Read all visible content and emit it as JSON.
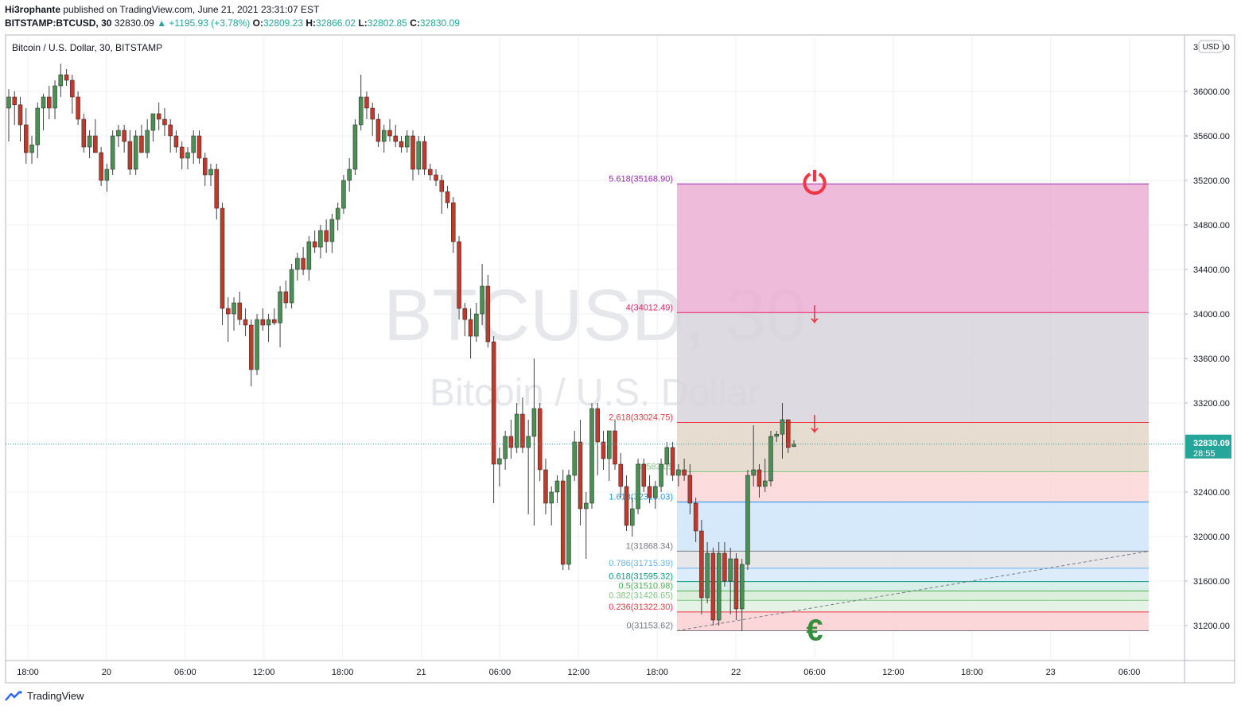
{
  "header": {
    "author": "Hi3rophante",
    "published": "published on TradingView.com, June 21, 2021 23:31:07 EST",
    "symbol": "BITSTAMP:BTCUSD, 30",
    "last": "32830.09",
    "change": "▲ +1195.93 (+3.78%)",
    "o_label": "O:",
    "o_val": "32809.23",
    "h_label": "H:",
    "h_val": "32866.02",
    "l_label": "L:",
    "l_val": "32802.85",
    "c_label": "C:",
    "c_val": "32830.09"
  },
  "footer": {
    "brand": "TradingView"
  },
  "chart_data": {
    "type": "candlestick",
    "title": "Bitcoin / U.S. Dollar, 30, BITSTAMP",
    "watermark": [
      "BTCUSD, 30",
      "Bitcoin / U.S. Dollar"
    ],
    "currency_label": "USD",
    "price_badge": {
      "price": "32830.09",
      "countdown": "28:55"
    },
    "ylim": [
      30900,
      36500
    ],
    "y_ticks": [
      31200,
      31600,
      32000,
      32400,
      32800,
      33200,
      33600,
      34000,
      34400,
      34800,
      35200,
      35600,
      36000
    ],
    "x_ticks": [
      "18:00",
      "20",
      "06:00",
      "12:00",
      "18:00",
      "21",
      "06:00",
      "12:00",
      "18:00",
      "22",
      "06:00",
      "12:00",
      "18:00",
      "23",
      "06:00"
    ],
    "colors": {
      "up": "#26a69a",
      "down": "#ef5350",
      "up_body": "#4a8f53",
      "down_body": "#c0392b"
    },
    "candles": [
      {
        "o": 35850,
        "h": 36020,
        "l": 35550,
        "c": 35950
      },
      {
        "o": 35950,
        "h": 36000,
        "l": 35700,
        "c": 35880
      },
      {
        "o": 35880,
        "h": 35950,
        "l": 35550,
        "c": 35700
      },
      {
        "o": 35700,
        "h": 35850,
        "l": 35350,
        "c": 35450
      },
      {
        "o": 35450,
        "h": 35600,
        "l": 35350,
        "c": 35520
      },
      {
        "o": 35520,
        "h": 35900,
        "l": 35400,
        "c": 35850
      },
      {
        "o": 35850,
        "h": 35980,
        "l": 35650,
        "c": 35950
      },
      {
        "o": 35950,
        "h": 36050,
        "l": 35750,
        "c": 35850
      },
      {
        "o": 35850,
        "h": 36100,
        "l": 35750,
        "c": 36050
      },
      {
        "o": 36050,
        "h": 36250,
        "l": 35950,
        "c": 36150
      },
      {
        "o": 36150,
        "h": 36200,
        "l": 36050,
        "c": 36100
      },
      {
        "o": 36100,
        "h": 36150,
        "l": 35800,
        "c": 35950
      },
      {
        "o": 35950,
        "h": 36000,
        "l": 35700,
        "c": 35750
      },
      {
        "o": 35750,
        "h": 35800,
        "l": 35450,
        "c": 35500
      },
      {
        "o": 35500,
        "h": 35650,
        "l": 35400,
        "c": 35600
      },
      {
        "o": 35600,
        "h": 35750,
        "l": 35450,
        "c": 35450
      },
      {
        "o": 35450,
        "h": 35500,
        "l": 35150,
        "c": 35200
      },
      {
        "o": 35200,
        "h": 35350,
        "l": 35100,
        "c": 35300
      },
      {
        "o": 35300,
        "h": 35650,
        "l": 35250,
        "c": 35600
      },
      {
        "o": 35600,
        "h": 35700,
        "l": 35500,
        "c": 35650
      },
      {
        "o": 35650,
        "h": 35700,
        "l": 35450,
        "c": 35550
      },
      {
        "o": 35550,
        "h": 35650,
        "l": 35250,
        "c": 35300
      },
      {
        "o": 35300,
        "h": 35650,
        "l": 35250,
        "c": 35600
      },
      {
        "o": 35600,
        "h": 35700,
        "l": 35450,
        "c": 35450
      },
      {
        "o": 35450,
        "h": 35750,
        "l": 35400,
        "c": 35650
      },
      {
        "o": 35650,
        "h": 35800,
        "l": 35550,
        "c": 35800
      },
      {
        "o": 35800,
        "h": 35900,
        "l": 35650,
        "c": 35750
      },
      {
        "o": 35750,
        "h": 35850,
        "l": 35600,
        "c": 35700
      },
      {
        "o": 35700,
        "h": 35750,
        "l": 35450,
        "c": 35600
      },
      {
        "o": 35600,
        "h": 35650,
        "l": 35450,
        "c": 35500
      },
      {
        "o": 35500,
        "h": 35550,
        "l": 35300,
        "c": 35400
      },
      {
        "o": 35400,
        "h": 35500,
        "l": 35300,
        "c": 35450
      },
      {
        "o": 35450,
        "h": 35650,
        "l": 35350,
        "c": 35600
      },
      {
        "o": 35600,
        "h": 35650,
        "l": 35350,
        "c": 35400
      },
      {
        "o": 35400,
        "h": 35450,
        "l": 35150,
        "c": 35250
      },
      {
        "o": 35250,
        "h": 35350,
        "l": 35150,
        "c": 35300
      },
      {
        "o": 35300,
        "h": 35350,
        "l": 34850,
        "c": 34950
      },
      {
        "o": 34950,
        "h": 35000,
        "l": 33900,
        "c": 34050
      },
      {
        "o": 34050,
        "h": 34150,
        "l": 33750,
        "c": 34000
      },
      {
        "o": 34000,
        "h": 34150,
        "l": 33850,
        "c": 34100
      },
      {
        "o": 34100,
        "h": 34200,
        "l": 33900,
        "c": 33950
      },
      {
        "o": 33950,
        "h": 34050,
        "l": 33800,
        "c": 33900
      },
      {
        "o": 33900,
        "h": 33950,
        "l": 33350,
        "c": 33500
      },
      {
        "o": 33500,
        "h": 34000,
        "l": 33450,
        "c": 33950
      },
      {
        "o": 33950,
        "h": 34050,
        "l": 33850,
        "c": 33900
      },
      {
        "o": 33900,
        "h": 34000,
        "l": 33750,
        "c": 33950
      },
      {
        "o": 33950,
        "h": 34050,
        "l": 33900,
        "c": 33920
      },
      {
        "o": 33920,
        "h": 34250,
        "l": 33700,
        "c": 34200
      },
      {
        "o": 34200,
        "h": 34300,
        "l": 34050,
        "c": 34100
      },
      {
        "o": 34100,
        "h": 34450,
        "l": 34050,
        "c": 34400
      },
      {
        "o": 34400,
        "h": 34550,
        "l": 34300,
        "c": 34500
      },
      {
        "o": 34500,
        "h": 34600,
        "l": 34350,
        "c": 34400
      },
      {
        "o": 34400,
        "h": 34700,
        "l": 34300,
        "c": 34650
      },
      {
        "o": 34650,
        "h": 34750,
        "l": 34550,
        "c": 34600
      },
      {
        "o": 34600,
        "h": 34800,
        "l": 34500,
        "c": 34750
      },
      {
        "o": 34750,
        "h": 34850,
        "l": 34550,
        "c": 34650
      },
      {
        "o": 34650,
        "h": 34900,
        "l": 34550,
        "c": 34850
      },
      {
        "o": 34850,
        "h": 35000,
        "l": 34750,
        "c": 34950
      },
      {
        "o": 34950,
        "h": 35250,
        "l": 34900,
        "c": 35200
      },
      {
        "o": 35200,
        "h": 35400,
        "l": 35100,
        "c": 35300
      },
      {
        "o": 35300,
        "h": 35750,
        "l": 35250,
        "c": 35700
      },
      {
        "o": 35700,
        "h": 36150,
        "l": 35650,
        "c": 35950
      },
      {
        "o": 35950,
        "h": 36000,
        "l": 35750,
        "c": 35850
      },
      {
        "o": 35850,
        "h": 35900,
        "l": 35600,
        "c": 35750
      },
      {
        "o": 35750,
        "h": 35800,
        "l": 35500,
        "c": 35550
      },
      {
        "o": 35550,
        "h": 35700,
        "l": 35450,
        "c": 35650
      },
      {
        "o": 35650,
        "h": 35750,
        "l": 35550,
        "c": 35600
      },
      {
        "o": 35600,
        "h": 35700,
        "l": 35500,
        "c": 35550
      },
      {
        "o": 35550,
        "h": 35600,
        "l": 35450,
        "c": 35500
      },
      {
        "o": 35500,
        "h": 35650,
        "l": 35450,
        "c": 35600
      },
      {
        "o": 35600,
        "h": 35650,
        "l": 35200,
        "c": 35300
      },
      {
        "o": 35300,
        "h": 35600,
        "l": 35250,
        "c": 35550
      },
      {
        "o": 35550,
        "h": 35600,
        "l": 35250,
        "c": 35300
      },
      {
        "o": 35300,
        "h": 35350,
        "l": 35200,
        "c": 35250
      },
      {
        "o": 35250,
        "h": 35300,
        "l": 35150,
        "c": 35200
      },
      {
        "o": 35200,
        "h": 35250,
        "l": 34900,
        "c": 35100
      },
      {
        "o": 35100,
        "h": 35150,
        "l": 34950,
        "c": 35000
      },
      {
        "o": 35000,
        "h": 35050,
        "l": 34550,
        "c": 34650
      },
      {
        "o": 34650,
        "h": 34700,
        "l": 33950,
        "c": 34050
      },
      {
        "o": 34050,
        "h": 34100,
        "l": 33800,
        "c": 33950
      },
      {
        "o": 33950,
        "h": 34050,
        "l": 33600,
        "c": 33800
      },
      {
        "o": 33800,
        "h": 34100,
        "l": 33750,
        "c": 34000
      },
      {
        "o": 34000,
        "h": 34450,
        "l": 33900,
        "c": 34250
      },
      {
        "o": 34250,
        "h": 34350,
        "l": 33700,
        "c": 33750
      },
      {
        "o": 33750,
        "h": 33800,
        "l": 32300,
        "c": 32650
      },
      {
        "o": 32650,
        "h": 32800,
        "l": 32450,
        "c": 32700
      },
      {
        "o": 32700,
        "h": 32950,
        "l": 32600,
        "c": 32900
      },
      {
        "o": 32900,
        "h": 33050,
        "l": 32700,
        "c": 32800
      },
      {
        "o": 32800,
        "h": 33200,
        "l": 32750,
        "c": 33100
      },
      {
        "o": 33100,
        "h": 33250,
        "l": 32750,
        "c": 32800
      },
      {
        "o": 32800,
        "h": 33050,
        "l": 32200,
        "c": 32900
      },
      {
        "o": 32900,
        "h": 33600,
        "l": 32100,
        "c": 33150
      },
      {
        "o": 33150,
        "h": 33200,
        "l": 32500,
        "c": 32600
      },
      {
        "o": 32600,
        "h": 32700,
        "l": 32200,
        "c": 32300
      },
      {
        "o": 32300,
        "h": 32450,
        "l": 32100,
        "c": 32400
      },
      {
        "o": 32400,
        "h": 32550,
        "l": 32300,
        "c": 32500
      },
      {
        "o": 32500,
        "h": 32600,
        "l": 31700,
        "c": 31750
      },
      {
        "o": 31750,
        "h": 32600,
        "l": 31700,
        "c": 32550
      },
      {
        "o": 32550,
        "h": 32950,
        "l": 32500,
        "c": 32850
      },
      {
        "o": 32850,
        "h": 33050,
        "l": 32100,
        "c": 32250
      },
      {
        "o": 32250,
        "h": 32400,
        "l": 31800,
        "c": 32300
      },
      {
        "o": 32300,
        "h": 33200,
        "l": 32250,
        "c": 33150
      },
      {
        "o": 33150,
        "h": 33200,
        "l": 32550,
        "c": 32850
      },
      {
        "o": 32850,
        "h": 32950,
        "l": 32600,
        "c": 32700
      },
      {
        "o": 32700,
        "h": 32950,
        "l": 32500,
        "c": 32950
      },
      {
        "o": 32950,
        "h": 33050,
        "l": 32600,
        "c": 32650
      },
      {
        "o": 32650,
        "h": 32750,
        "l": 32350,
        "c": 32450
      },
      {
        "o": 32450,
        "h": 32550,
        "l": 32050,
        "c": 32100
      },
      {
        "o": 32100,
        "h": 32350,
        "l": 32000,
        "c": 32250
      },
      {
        "o": 32250,
        "h": 32700,
        "l": 32200,
        "c": 32650
      },
      {
        "o": 32650,
        "h": 32700,
        "l": 32400,
        "c": 32450
      },
      {
        "o": 32450,
        "h": 32550,
        "l": 32300,
        "c": 32350
      },
      {
        "o": 32350,
        "h": 32500,
        "l": 32250,
        "c": 32450
      },
      {
        "o": 32450,
        "h": 32700,
        "l": 32400,
        "c": 32650
      },
      {
        "o": 32650,
        "h": 32850,
        "l": 32550,
        "c": 32800
      },
      {
        "o": 32800,
        "h": 32850,
        "l": 32500,
        "c": 32550
      },
      {
        "o": 32550,
        "h": 32650,
        "l": 32450,
        "c": 32600
      },
      {
        "o": 32600,
        "h": 32700,
        "l": 32500,
        "c": 32550
      },
      {
        "o": 32550,
        "h": 32650,
        "l": 32200,
        "c": 32300
      },
      {
        "o": 32300,
        "h": 32350,
        "l": 31950,
        "c": 32050
      },
      {
        "o": 32050,
        "h": 32150,
        "l": 31300,
        "c": 31450
      },
      {
        "o": 31450,
        "h": 31950,
        "l": 31400,
        "c": 31850
      },
      {
        "o": 31850,
        "h": 31900,
        "l": 31200,
        "c": 31250
      },
      {
        "o": 31250,
        "h": 31950,
        "l": 31200,
        "c": 31850
      },
      {
        "o": 31850,
        "h": 31950,
        "l": 31550,
        "c": 31600
      },
      {
        "o": 31600,
        "h": 31900,
        "l": 31300,
        "c": 31800
      },
      {
        "o": 31800,
        "h": 31850,
        "l": 31250,
        "c": 31350
      },
      {
        "o": 31350,
        "h": 31800,
        "l": 31150,
        "c": 31750
      },
      {
        "o": 31750,
        "h": 32600,
        "l": 31700,
        "c": 32550
      },
      {
        "o": 32550,
        "h": 33000,
        "l": 32450,
        "c": 32600
      },
      {
        "o": 32600,
        "h": 32650,
        "l": 32350,
        "c": 32450
      },
      {
        "o": 32450,
        "h": 32700,
        "l": 32400,
        "c": 32500
      },
      {
        "o": 32500,
        "h": 32950,
        "l": 32450,
        "c": 32900
      },
      {
        "o": 32900,
        "h": 32950,
        "l": 32850,
        "c": 32920
      },
      {
        "o": 32920,
        "h": 33200,
        "l": 32700,
        "c": 33050
      },
      {
        "o": 33050,
        "h": 33050,
        "l": 32750,
        "c": 32800
      },
      {
        "o": 32809.23,
        "h": 32866.02,
        "l": 32802.85,
        "c": 32830.09
      }
    ],
    "fib_levels": [
      {
        "label": "0(31153.62)",
        "price": 31153.62,
        "color": "#787b86"
      },
      {
        "label": "0.236(31322.30)",
        "price": 31322.3,
        "color": "#f23645"
      },
      {
        "label": "0.382(31426.65)",
        "price": 31426.65,
        "color": "#81c784"
      },
      {
        "label": "0.5(31510.98)",
        "price": 31510.98,
        "color": "#4caf50"
      },
      {
        "label": "0.618(31595.32)",
        "price": 31595.32,
        "color": "#089981"
      },
      {
        "label": "0.786(31715.39)",
        "price": 31715.39,
        "color": "#64b5f6"
      },
      {
        "label": "1(31868.34)",
        "price": 31868.34,
        "color": "#787b86"
      },
      {
        "label": "1.618(32310.03)",
        "price": 32310.03,
        "color": "#2196f3"
      },
      {
        "label": "32583.05",
        "price": 32583.05,
        "color": "#81c784"
      },
      {
        "label": "2.618(33024.75)",
        "price": 33024.75,
        "color": "#f23645"
      },
      {
        "label": "4(34012.49)",
        "price": 34012.49,
        "color": "#e91e63"
      },
      {
        "label": "5.618(35168.90)",
        "price": 35168.9,
        "color": "#9c27b0"
      }
    ],
    "fib_zone_colors": [
      "#fbd0d2",
      "#dff1e0",
      "#d6ecd7",
      "#d0ebe5",
      "#d7e9f9",
      "#e3e3e6",
      "#cfe5fa",
      "#fbd6d6",
      "#e2d6c8",
      "#d7d3dc",
      "#ebafd3"
    ],
    "markers": [
      {
        "name": "power-icon",
        "symbol": "⏻",
        "price": 35168.9,
        "color": "#f23645"
      },
      {
        "name": "arrow-down-icon",
        "symbol": "↓",
        "price": 34012.49,
        "color": "#f23645"
      },
      {
        "name": "arrow-down-icon",
        "symbol": "↓",
        "price": 33024.75,
        "color": "#f23645"
      },
      {
        "name": "euro-icon",
        "symbol": "€",
        "price": 31153.62,
        "color": "#388e3c"
      }
    ]
  }
}
